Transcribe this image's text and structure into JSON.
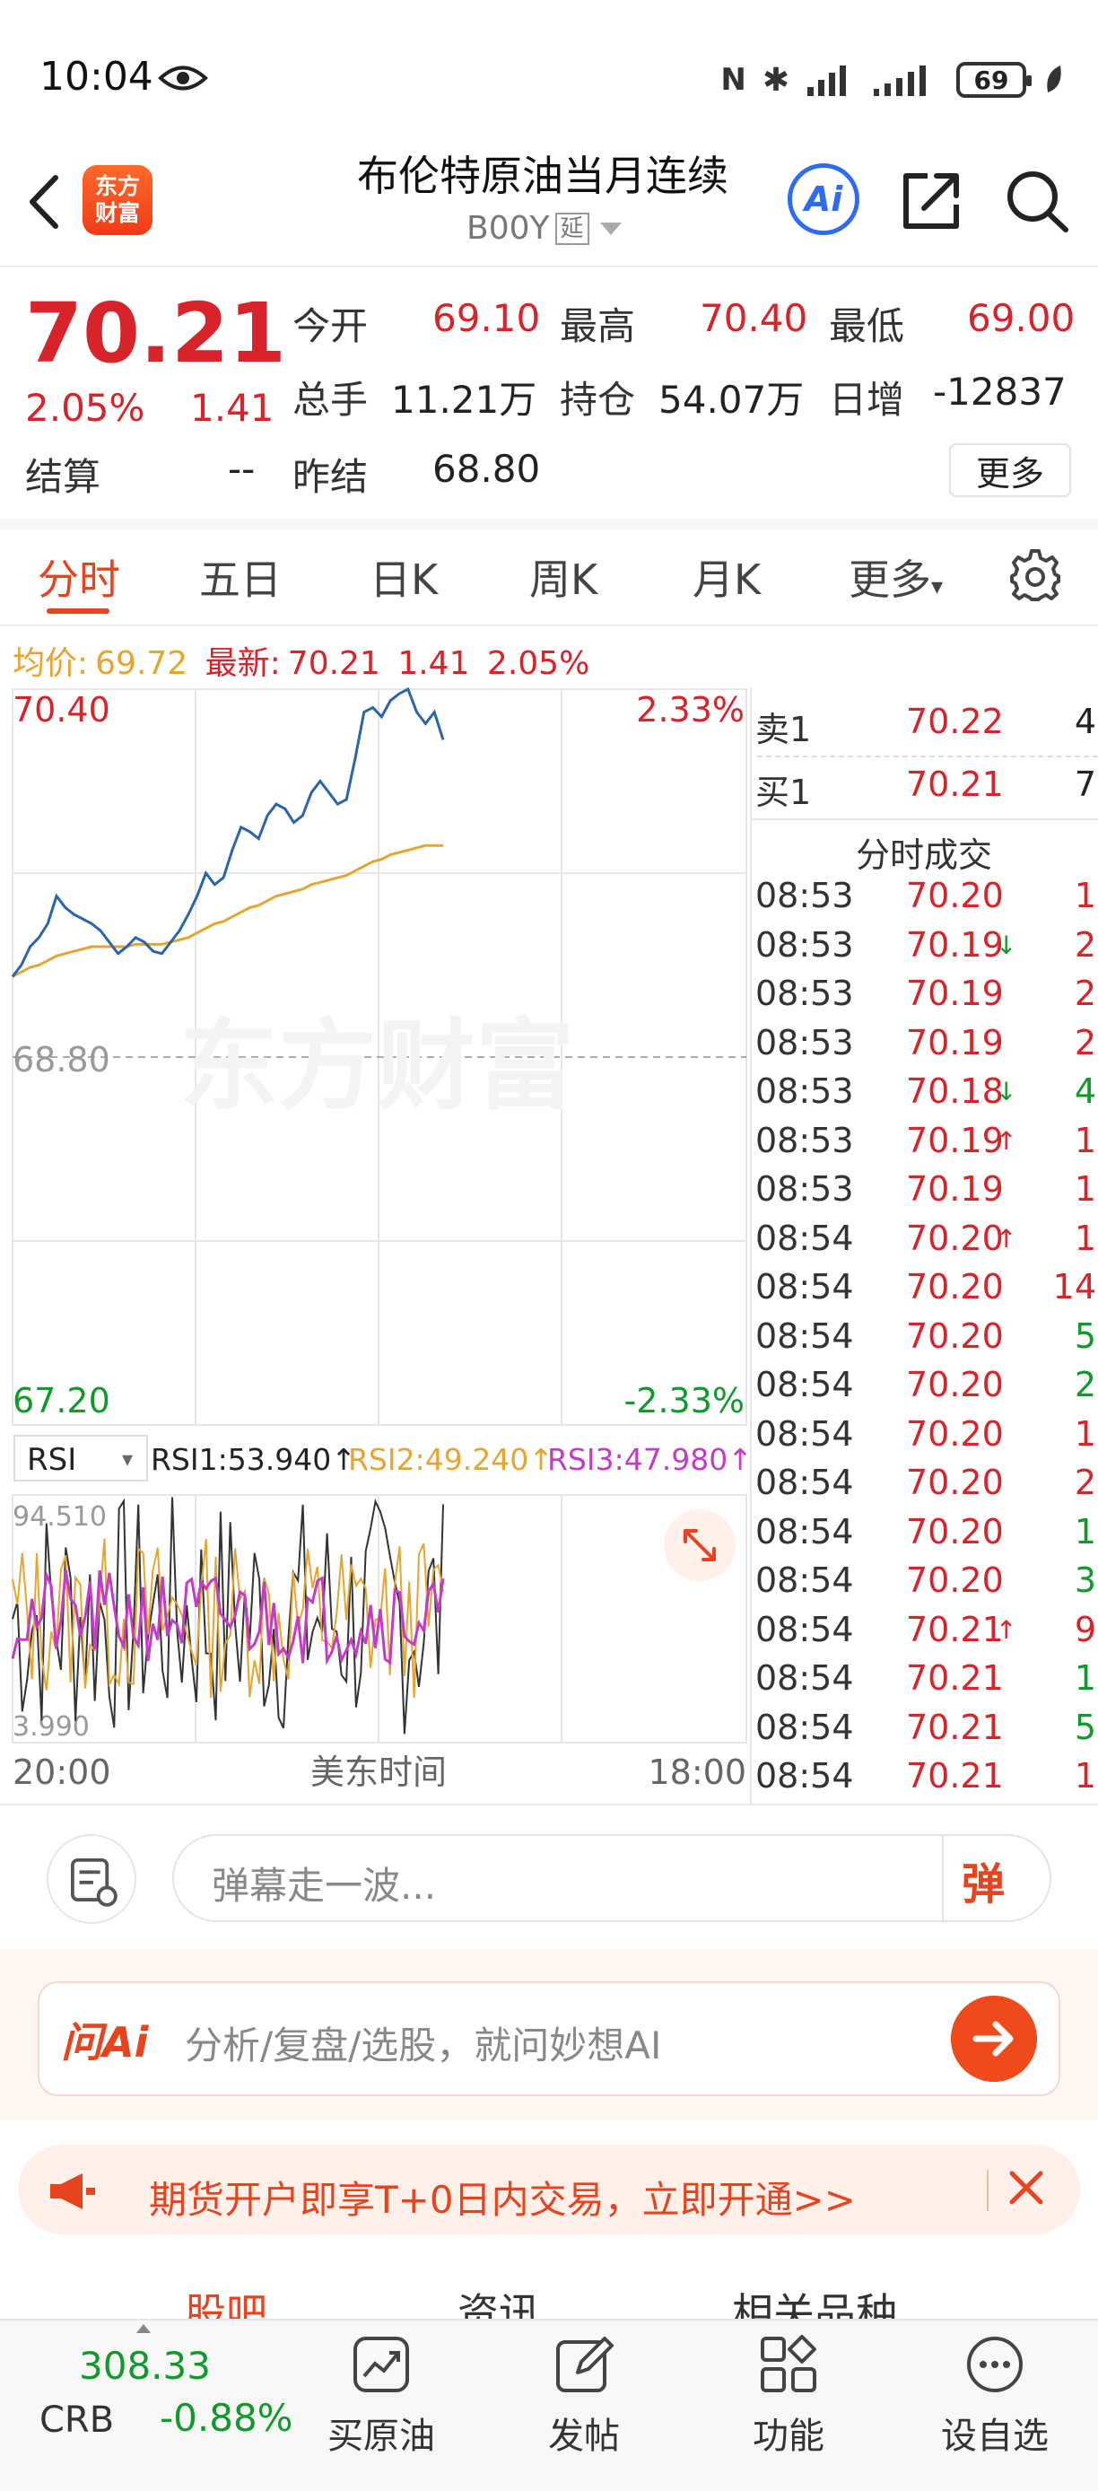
{
  "status_bar": {
    "time": "10:04",
    "battery": "69"
  },
  "header": {
    "title": "布伦特原油当月连续",
    "code": "B00Y",
    "tag": "延",
    "logo_line1": "东方",
    "logo_line2": "财富",
    "ai_label": "Ai"
  },
  "quote": {
    "last": "70.21",
    "change_pct": "2.05%",
    "change": "1.41",
    "open_label": "今开",
    "open": "69.10",
    "high_label": "最高",
    "high": "70.40",
    "low_label": "最低",
    "low": "69.00",
    "volume_label": "总手",
    "volume": "11.21万",
    "oi_label": "持仓",
    "oi": "54.07万",
    "daily_inc_label": "日增",
    "daily_inc": "-12837",
    "settle_label": "结算",
    "settle": "--",
    "prev_settle_label": "昨结",
    "prev_settle": "68.80",
    "more": "更多"
  },
  "tabs": [
    "分时",
    "五日",
    "日K",
    "周K",
    "月K",
    "更多"
  ],
  "info_line": {
    "avg_label": "均价:",
    "avg": "69.72",
    "latest_label": "最新:",
    "latest": "70.21",
    "change": "1.41",
    "pct": "2.05%"
  },
  "chart_data": {
    "type": "line",
    "y_top": "70.40",
    "y_mid": "68.80",
    "y_bottom": "67.20",
    "pct_top": "2.33%",
    "pct_bottom": "-2.33%",
    "x_start": "20:00",
    "x_mid": "美东时间",
    "x_end": "18:00",
    "watermark": "东方财富",
    "series": [
      {
        "name": "price",
        "color": "#2a64ad",
        "values": [
          69.15,
          69.2,
          69.28,
          69.32,
          69.38,
          69.5,
          69.45,
          69.42,
          69.4,
          69.38,
          69.35,
          69.3,
          69.25,
          69.28,
          69.32,
          69.3,
          69.26,
          69.25,
          69.3,
          69.35,
          69.42,
          69.5,
          69.6,
          69.55,
          69.58,
          69.7,
          69.8,
          69.78,
          69.75,
          69.85,
          69.9,
          69.88,
          69.82,
          69.85,
          69.95,
          70.0,
          69.95,
          69.9,
          69.92,
          70.1,
          70.3,
          70.32,
          70.28,
          70.35,
          70.38,
          70.4,
          70.3,
          70.25,
          70.3,
          70.18
        ]
      },
      {
        "name": "avg",
        "color": "#e5a52e",
        "values": [
          69.15,
          69.17,
          69.19,
          69.2,
          69.22,
          69.24,
          69.25,
          69.26,
          69.27,
          69.28,
          69.28,
          69.28,
          69.28,
          69.28,
          69.29,
          69.29,
          69.29,
          69.29,
          69.3,
          69.31,
          69.32,
          69.34,
          69.36,
          69.38,
          69.39,
          69.41,
          69.43,
          69.45,
          69.46,
          69.48,
          69.5,
          69.51,
          69.52,
          69.53,
          69.55,
          69.56,
          69.57,
          69.58,
          69.59,
          69.61,
          69.63,
          69.65,
          69.66,
          69.68,
          69.69,
          69.7,
          69.71,
          69.72,
          69.72,
          69.72
        ]
      }
    ],
    "indicator": {
      "name": "RSI",
      "rsi1": "RSI1:53.940↑",
      "rsi2": "RSI2:49.240↑",
      "rsi3": "RSI3:47.980↑",
      "max": "94.510",
      "min": "3.990"
    }
  },
  "order_book": {
    "ask_label": "卖1",
    "ask_price": "70.22",
    "ask_vol": "4",
    "bid_label": "买1",
    "bid_price": "70.21",
    "bid_vol": "7",
    "trades_title": "分时成交"
  },
  "trades": [
    {
      "time": "08:53",
      "price": "70.20",
      "arrow": "",
      "vol": "1",
      "vol_color": "#d8232a"
    },
    {
      "time": "08:53",
      "price": "70.19",
      "arrow": "↓",
      "vol": "2",
      "vol_color": "#d8232a"
    },
    {
      "time": "08:53",
      "price": "70.19",
      "arrow": "",
      "vol": "2",
      "vol_color": "#d8232a"
    },
    {
      "time": "08:53",
      "price": "70.19",
      "arrow": "",
      "vol": "2",
      "vol_color": "#d8232a"
    },
    {
      "time": "08:53",
      "price": "70.18",
      "arrow": "↓",
      "vol": "4",
      "vol_color": "#119a2b"
    },
    {
      "time": "08:53",
      "price": "70.19",
      "arrow": "↑",
      "vol": "1",
      "vol_color": "#d8232a"
    },
    {
      "time": "08:53",
      "price": "70.19",
      "arrow": "",
      "vol": "1",
      "vol_color": "#d8232a"
    },
    {
      "time": "08:54",
      "price": "70.20",
      "arrow": "↑",
      "vol": "1",
      "vol_color": "#d8232a"
    },
    {
      "time": "08:54",
      "price": "70.20",
      "arrow": "",
      "vol": "14",
      "vol_color": "#d8232a"
    },
    {
      "time": "08:54",
      "price": "70.20",
      "arrow": "",
      "vol": "5",
      "vol_color": "#119a2b"
    },
    {
      "time": "08:54",
      "price": "70.20",
      "arrow": "",
      "vol": "2",
      "vol_color": "#119a2b"
    },
    {
      "time": "08:54",
      "price": "70.20",
      "arrow": "",
      "vol": "1",
      "vol_color": "#d8232a"
    },
    {
      "time": "08:54",
      "price": "70.20",
      "arrow": "",
      "vol": "2",
      "vol_color": "#d8232a"
    },
    {
      "time": "08:54",
      "price": "70.20",
      "arrow": "",
      "vol": "1",
      "vol_color": "#119a2b"
    },
    {
      "time": "08:54",
      "price": "70.20",
      "arrow": "",
      "vol": "3",
      "vol_color": "#119a2b"
    },
    {
      "time": "08:54",
      "price": "70.21",
      "arrow": "↑",
      "vol": "9",
      "vol_color": "#d8232a"
    },
    {
      "time": "08:54",
      "price": "70.21",
      "arrow": "",
      "vol": "1",
      "vol_color": "#119a2b"
    },
    {
      "time": "08:54",
      "price": "70.21",
      "arrow": "",
      "vol": "5",
      "vol_color": "#119a2b"
    },
    {
      "time": "08:54",
      "price": "70.21",
      "arrow": "",
      "vol": "1",
      "vol_color": "#d8232a"
    }
  ],
  "danmu": {
    "placeholder": "弹幕走一波...",
    "button": "弹"
  },
  "ai_bar": {
    "logo": "问Ai",
    "placeholder": "分析/复盘/选股，就问妙想AI"
  },
  "promo": {
    "text": "期货开户即享T+0日内交易，立即开通>>"
  },
  "content_tabs": [
    "股吧",
    "资讯",
    "相关品种"
  ],
  "bottom": {
    "crb_value": "308.33",
    "crb_name": "CRB",
    "crb_pct": "-0.88%",
    "nav": [
      "买原油",
      "发帖",
      "功能",
      "设自选"
    ]
  }
}
